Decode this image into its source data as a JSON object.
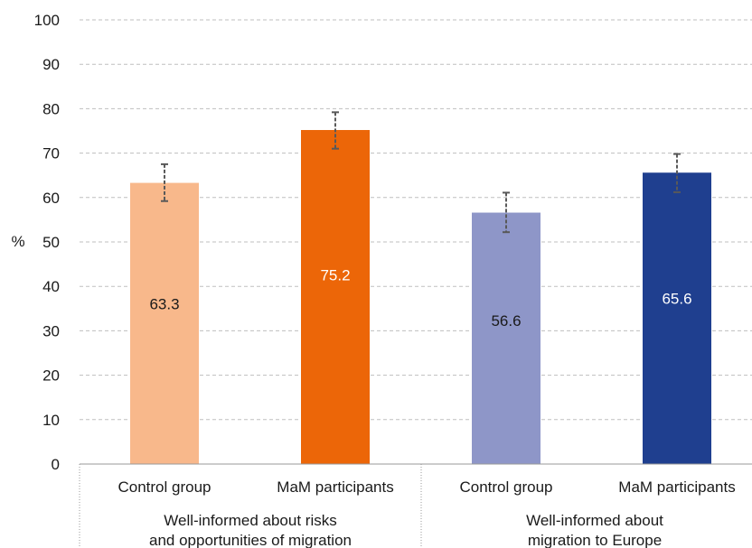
{
  "chart_data": {
    "type": "bar",
    "ylabel": "%",
    "ylim": [
      0,
      100
    ],
    "yticks": [
      0,
      10,
      20,
      30,
      40,
      50,
      60,
      70,
      80,
      90,
      100
    ],
    "grid": true,
    "groups": [
      {
        "label_lines": [
          "Well-informed about risks",
          "and opportunities of migration"
        ],
        "bars": [
          {
            "category": "Control group",
            "value": 63.3,
            "label": "63.3",
            "err_low": 59.2,
            "err_high": 67.5,
            "color": "#F8B88B",
            "label_color": "#1a1a1a"
          },
          {
            "category": "MaM participants",
            "value": 75.2,
            "label": "75.2",
            "err_low": 71.0,
            "err_high": 79.2,
            "color": "#EC6608",
            "label_color": "#ffffff"
          }
        ]
      },
      {
        "label_lines": [
          "Well-informed about",
          "migration to Europe"
        ],
        "bars": [
          {
            "category": "Control group",
            "value": 56.6,
            "label": "56.6",
            "err_low": 52.2,
            "err_high": 61.1,
            "color": "#8E96C8",
            "label_color": "#1a1a1a"
          },
          {
            "category": "MaM participants",
            "value": 65.6,
            "label": "65.6",
            "err_low": 61.2,
            "err_high": 69.8,
            "color": "#1F3F8F",
            "label_color": "#ffffff"
          }
        ]
      }
    ],
    "colors": {
      "grid": "#bfbfbf",
      "axis": "#9a9a9a",
      "error_bar": "#595959"
    }
  }
}
